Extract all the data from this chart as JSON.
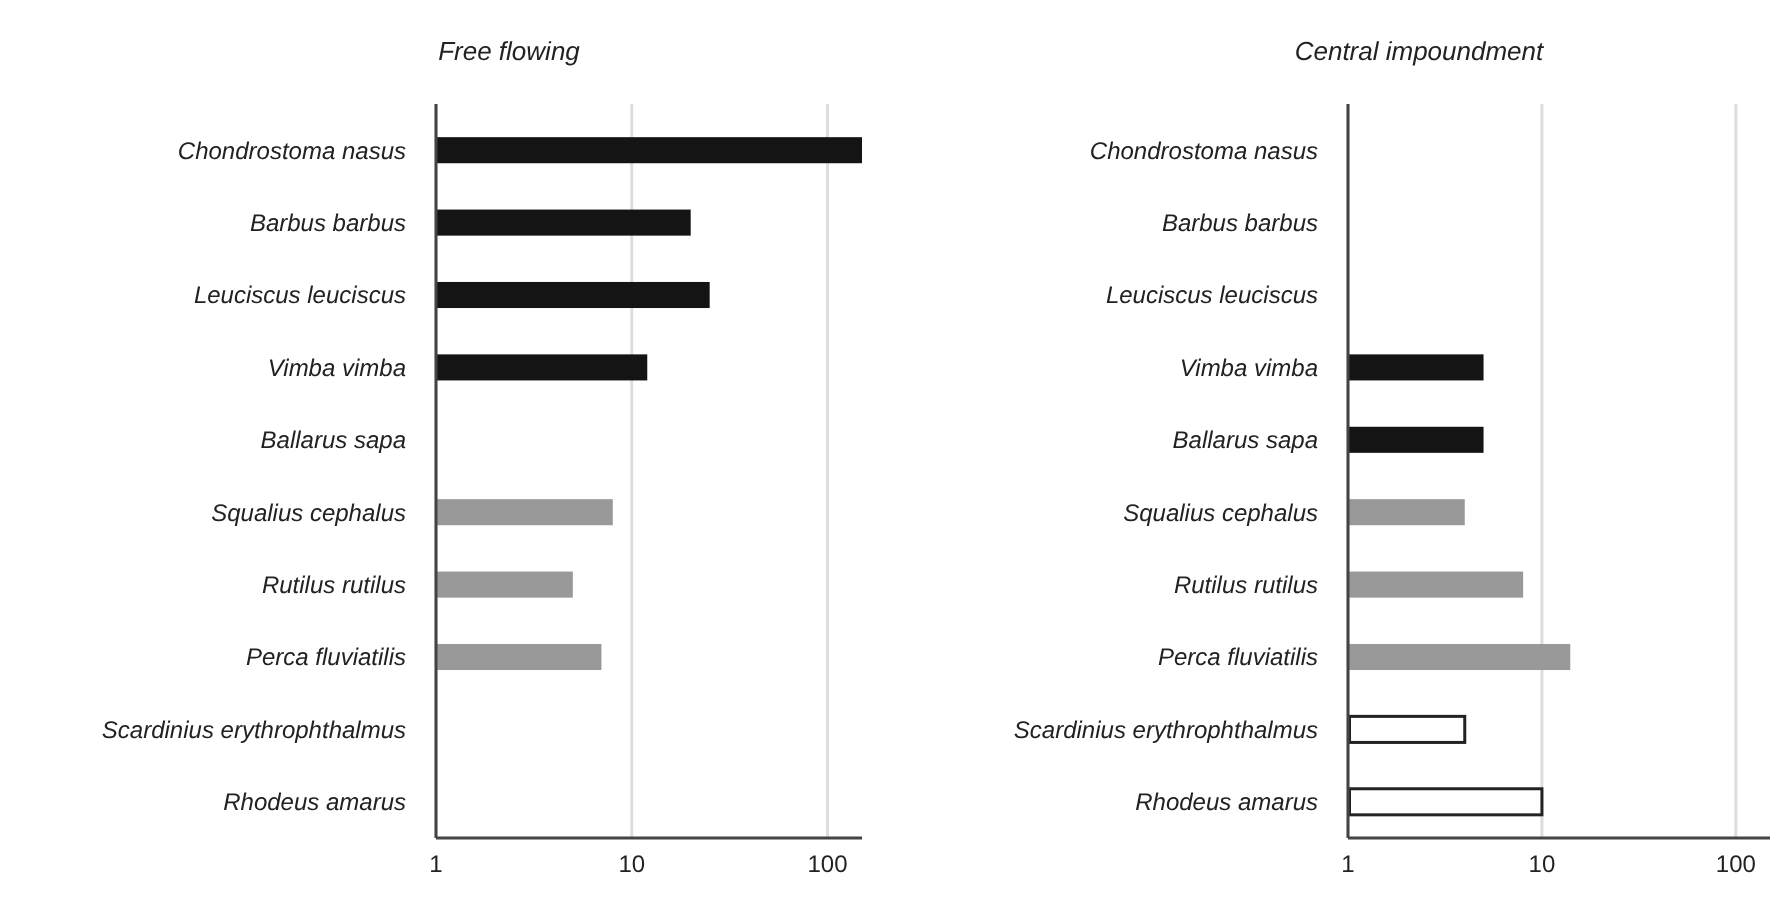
{
  "chart_data": [
    {
      "type": "bar",
      "orientation": "horizontal",
      "title": "Free flowing",
      "log": "x",
      "grid": "x",
      "categories": [
        "Chondrostoma nasus",
        "Barbus barbus",
        "Leuciscus leuciscus",
        "Vimba vimba",
        "Ballarus sapa",
        "Squalius cephalus",
        "Rutilus rutilus",
        "Perca fluviatilis",
        "Scardinius erythrophthalmus",
        "Rhodeus amarus"
      ],
      "values": [
        150,
        20,
        25,
        12,
        null,
        8,
        5,
        7,
        null,
        null
      ],
      "colors": [
        "#141414",
        "#141414",
        "#141414",
        "#141414",
        null,
        "#999999",
        "#999999",
        "#999999",
        null,
        null
      ],
      "xlim": [
        1,
        150
      ],
      "xticks": [
        1,
        10,
        100
      ]
    },
    {
      "type": "bar",
      "orientation": "horizontal",
      "title": "Central impoundment",
      "log": "x",
      "grid": "x",
      "categories": [
        "Chondrostoma nasus",
        "Barbus barbus",
        "Leuciscus leuciscus",
        "Vimba vimba",
        "Ballarus sapa",
        "Squalius cephalus",
        "Rutilus rutilus",
        "Perca fluviatilis",
        "Scardinius erythrophthalmus",
        "Rhodeus amarus"
      ],
      "values": [
        null,
        null,
        null,
        5,
        5,
        4,
        8,
        14,
        4,
        10
      ],
      "colors": [
        null,
        null,
        null,
        "#141414",
        "#141414",
        "#999999",
        "#999999",
        "#999999",
        "#ffffff",
        "#ffffff"
      ],
      "xlim": [
        1,
        150
      ],
      "xticks": [
        1,
        10,
        100
      ]
    }
  ]
}
